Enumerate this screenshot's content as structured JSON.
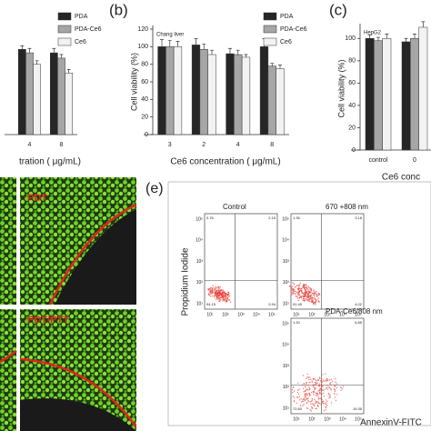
{
  "chart_data": [
    {
      "type": "bar",
      "xlabel": "tration ( μg/mL)",
      "categories": [
        "4",
        "8"
      ],
      "series": [
        {
          "name": "PDA",
          "color": "#262626",
          "values": [
            97,
            93
          ],
          "errors": [
            4,
            5
          ]
        },
        {
          "name": "PDA-Ce6",
          "color": "#a6a6a6",
          "values": [
            93,
            87
          ],
          "errors": [
            5,
            4
          ]
        },
        {
          "name": "Ce6",
          "color": "#f2f2f2",
          "values": [
            80,
            70
          ],
          "errors": [
            4,
            4
          ]
        }
      ],
      "ylim": [
        0,
        120
      ]
    },
    {
      "type": "bar",
      "title": "(b)",
      "annotation": "Chang liver",
      "xlabel": "Ce6 concentration ( μg/mL)",
      "ylabel": "Cell viability (%)",
      "categories": [
        "3",
        "2",
        "4",
        "8"
      ],
      "series": [
        {
          "name": "PDA",
          "color": "#262626",
          "values": [
            100,
            102,
            92,
            100
          ],
          "errors": [
            8,
            7,
            6,
            9
          ]
        },
        {
          "name": "PDA-Ce6",
          "color": "#a6a6a6",
          "values": [
            100,
            97,
            91,
            78
          ],
          "errors": [
            7,
            6,
            5,
            3
          ]
        },
        {
          "name": "Ce6",
          "color": "#f2f2f2",
          "values": [
            100,
            91,
            88,
            75
          ],
          "errors": [
            6,
            5,
            3,
            4
          ]
        }
      ],
      "ylim": [
        0,
        120
      ],
      "yticks": [
        0,
        20,
        40,
        60,
        80,
        100,
        120
      ]
    },
    {
      "type": "bar",
      "title": "(c)",
      "annotation": "HepG2",
      "xlabel": "Ce6 conc",
      "ylabel": "Cell viability (%)",
      "categories": [
        "control",
        "0"
      ],
      "series": [
        {
          "color": "#262626",
          "values": [
            100,
            97
          ],
          "errors": [
            3,
            3
          ]
        },
        {
          "color": "#a6a6a6",
          "values": [
            98,
            100
          ],
          "errors": [
            3,
            4
          ]
        },
        {
          "color": "#f2f2f2",
          "values": [
            100,
            110
          ],
          "errors": [
            4,
            5
          ]
        }
      ],
      "ylim": [
        0,
        110
      ],
      "yticks": [
        0,
        20,
        40,
        60,
        80,
        100
      ]
    }
  ],
  "panel_d": {
    "labels": [
      "PDT",
      "PDT/PTT"
    ]
  },
  "panel_e": {
    "label": "(e)",
    "ylabel": "Propidium Iodide",
    "xlabel": "AnnexinV-FITC",
    "ticks": [
      "10¹",
      "10²",
      "10³",
      "10⁴",
      "10⁵"
    ],
    "plots": [
      {
        "title": "Control",
        "quadrants": [
          "0.76",
          "2.15",
          "94.15",
          "2.94"
        ]
      },
      {
        "title": "670 +808 nm",
        "quadrants": [
          "1.35",
          "3.18",
          "91.45",
          "4.02"
        ]
      },
      {
        "title": "PDA-Ce6/808 nm",
        "quadrants": [
          "1.20",
          "6.85",
          "72.60",
          "19.35"
        ]
      }
    ]
  }
}
